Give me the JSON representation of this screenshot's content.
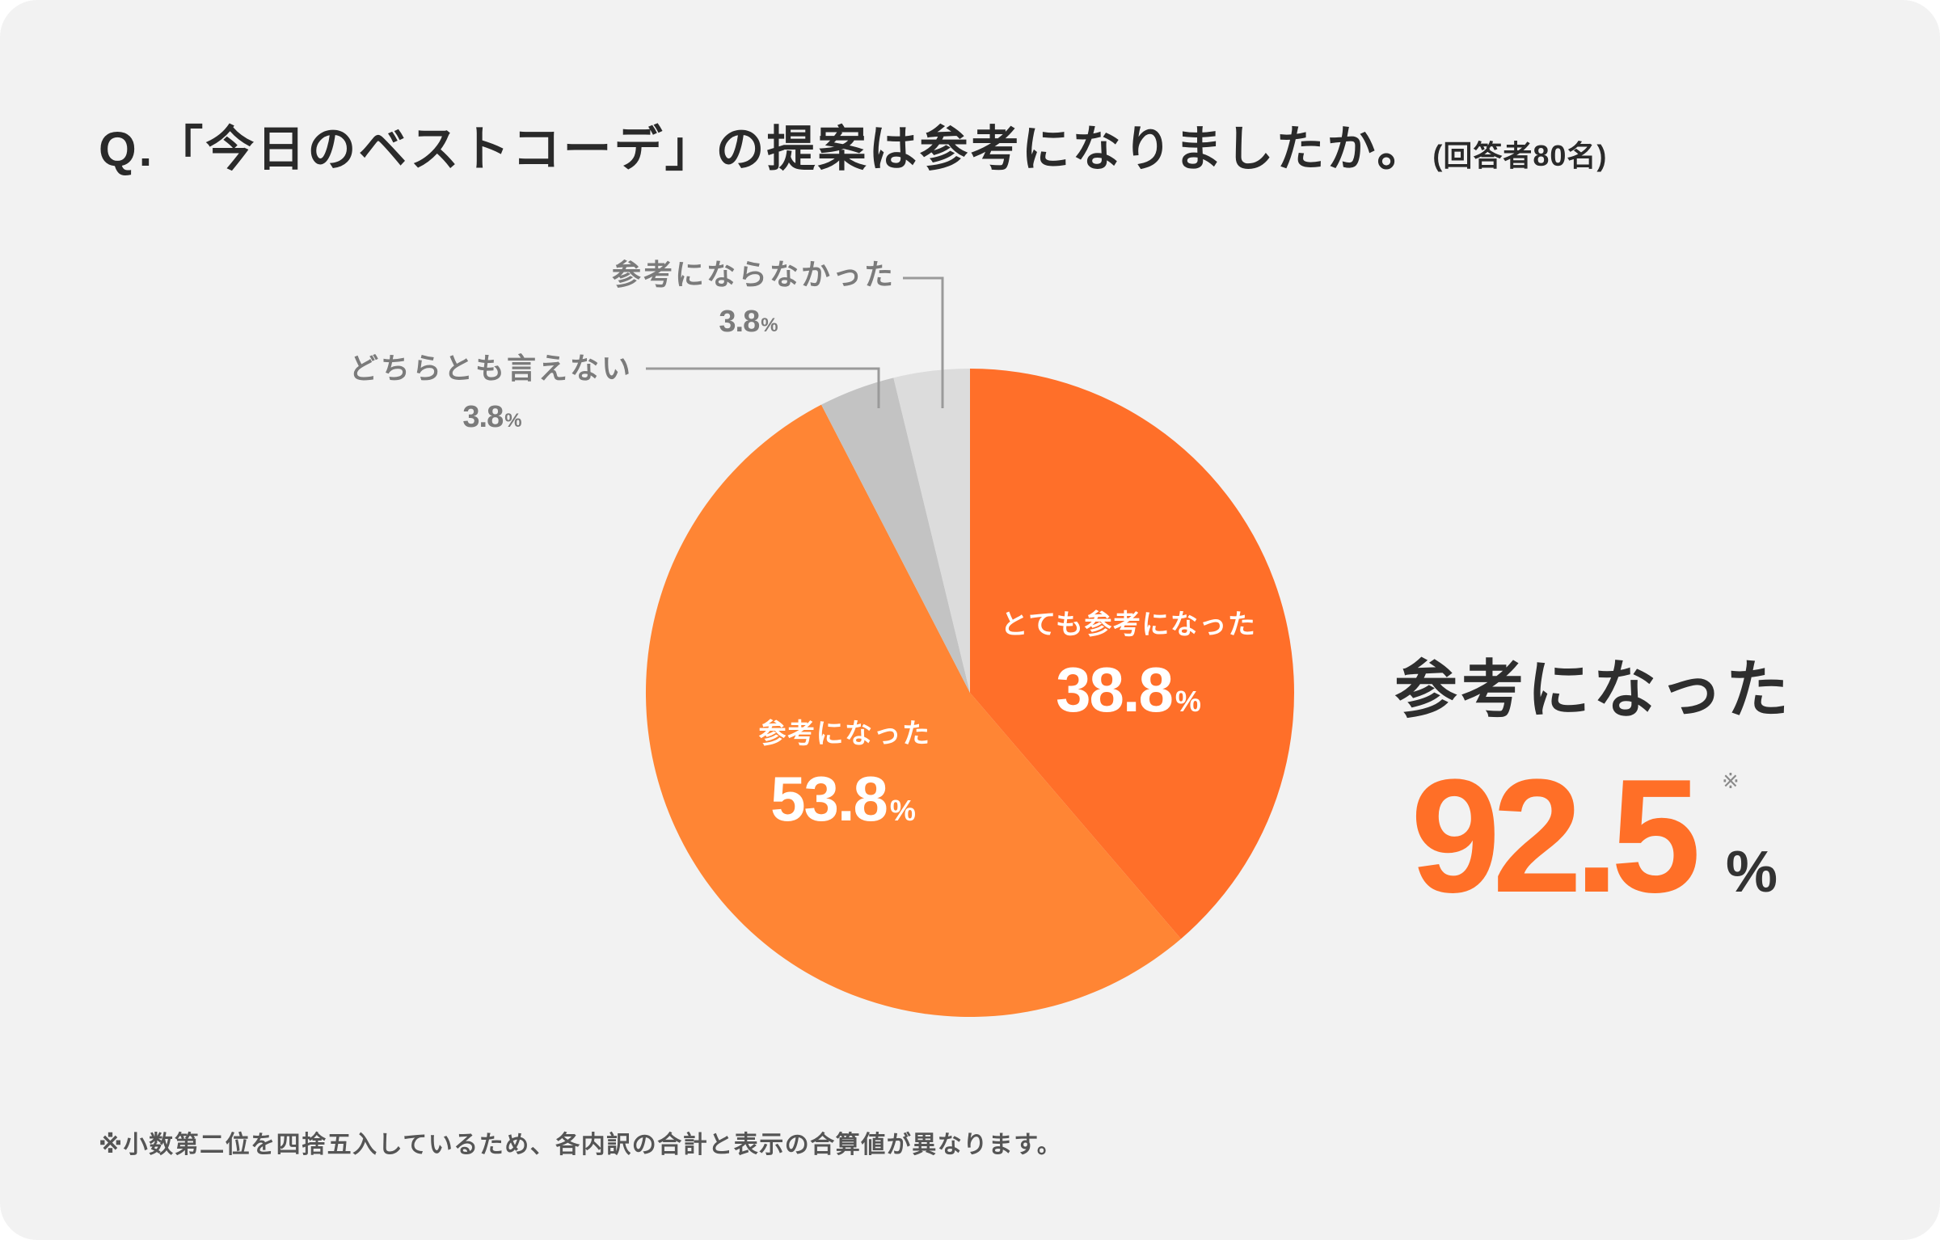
{
  "chart_data": {
    "type": "pie",
    "title": "Q.「今日のベストコーデ」の提案は参考になりましたか。",
    "subtitle": "(回答者80名)",
    "unit": "%",
    "categories": [
      "とても参考になった",
      "参考になった",
      "どちらとも言えない",
      "参考にならなかった"
    ],
    "values": [
      38.8,
      53.8,
      3.8,
      3.8
    ],
    "colors": [
      "#ff6f29",
      "#ff8534",
      "#c3c3c3",
      "#dcdcdc"
    ],
    "legend": "none"
  },
  "summary": {
    "label": "参考になった",
    "value": 92.5,
    "unit": "%",
    "note_mark": "※"
  },
  "footnote": "※小数第二位を四捨五入しているため、各内訳の合計と表示の合算値が異なります。"
}
